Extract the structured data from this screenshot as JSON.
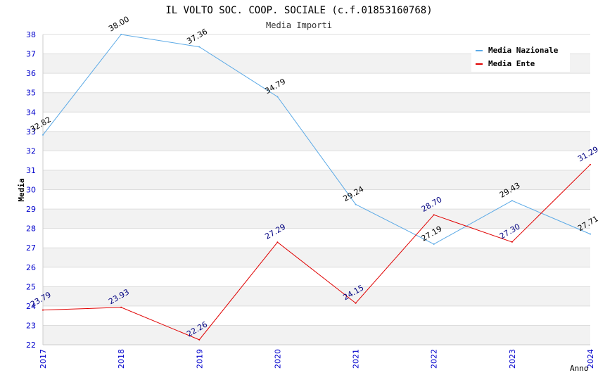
{
  "chart_data": {
    "type": "line",
    "title": "IL VOLTO SOC. COOP. SOCIALE (c.f.01853160768)",
    "subtitle": "Media Importi",
    "xlabel": "Anno",
    "ylabel": "Media",
    "ylim": [
      22,
      38
    ],
    "yticks": [
      "22",
      "23",
      "24",
      "25",
      "26",
      "27",
      "28",
      "29",
      "30",
      "31",
      "32",
      "33",
      "34",
      "35",
      "36",
      "37",
      "38"
    ],
    "categories": [
      "2017",
      "2018",
      "2019",
      "2020",
      "2021",
      "2022",
      "2023",
      "2024"
    ],
    "series": [
      {
        "name": "Media Nazionale",
        "color": "#5aa9e6",
        "label_color": "#000000",
        "values": [
          32.82,
          38.0,
          37.36,
          34.79,
          29.24,
          27.19,
          29.43,
          27.71
        ],
        "labels": [
          "32.82",
          "38.00",
          "37.36",
          "34.79",
          "29.24",
          "27.19",
          "29.43",
          "27.71"
        ]
      },
      {
        "name": "Media Ente",
        "color": "#e00000",
        "label_color": "#000080",
        "values": [
          23.79,
          23.93,
          22.26,
          27.29,
          24.15,
          28.7,
          27.3,
          31.29
        ],
        "labels": [
          "23.79",
          "23.93",
          "22.26",
          "27.29",
          "24.15",
          "28.70",
          "27.30",
          "31.29"
        ]
      }
    ],
    "legend_position": "top-right",
    "grid": true,
    "colors": {
      "band": "#f2f2f2",
      "grid": "#dddddd",
      "tick_text": "#0000cc"
    }
  }
}
